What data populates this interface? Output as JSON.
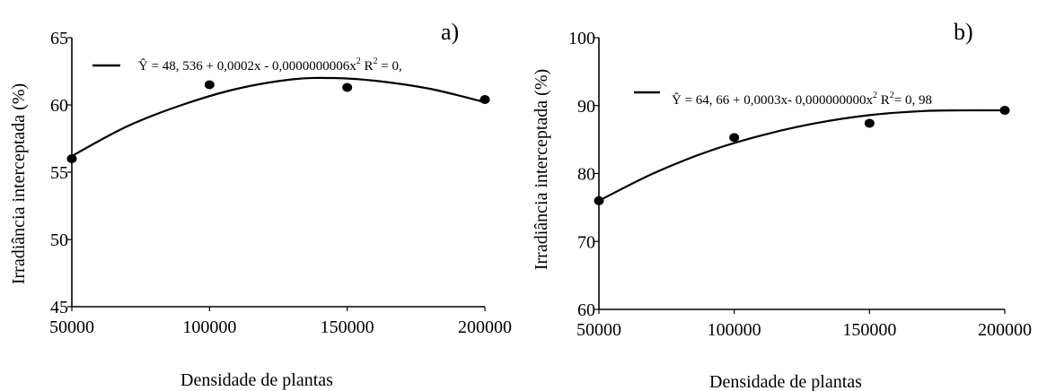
{
  "chart_data": [
    {
      "type": "scatter",
      "panel_label": "a)",
      "xlabel": "Densidade de plantas",
      "ylabel": "Irradiância interceptada (%)",
      "xlim": [
        50000,
        200000
      ],
      "ylim": [
        45,
        65
      ],
      "xticks": [
        50000,
        100000,
        150000,
        200000
      ],
      "xtick_labels": [
        "50000",
        "100000",
        "150000",
        "200000"
      ],
      "yticks": [
        45,
        50,
        55,
        60,
        65
      ],
      "ytick_labels": [
        "45",
        "50",
        "55",
        "60",
        "65"
      ],
      "equation": {
        "main": "Ŷ = 48, 536 + 0,0002x - 0,0000000006x",
        "sup": "2",
        "r2_prefix": " R",
        "r2_sup": "2",
        "r2_value": " = 0,"
      },
      "points": [
        {
          "x": 50000,
          "y": 56.0
        },
        {
          "x": 100000,
          "y": 61.5
        },
        {
          "x": 150000,
          "y": 61.3
        },
        {
          "x": 200000,
          "y": 60.4
        }
      ],
      "curve": [
        {
          "x": 50000,
          "y": 56.2
        },
        {
          "x": 70000,
          "y": 58.4
        },
        {
          "x": 90000,
          "y": 60.0
        },
        {
          "x": 110000,
          "y": 61.2
        },
        {
          "x": 130000,
          "y": 61.9
        },
        {
          "x": 145000,
          "y": 62.0
        },
        {
          "x": 160000,
          "y": 61.8
        },
        {
          "x": 180000,
          "y": 61.2
        },
        {
          "x": 200000,
          "y": 60.2
        }
      ]
    },
    {
      "type": "scatter",
      "panel_label": "b)",
      "xlabel": "Densidade de plantas",
      "ylabel": "Irradiância interceptada (%)",
      "xlim": [
        50000,
        200000
      ],
      "ylim": [
        60,
        100
      ],
      "xticks": [
        50000,
        100000,
        150000,
        200000
      ],
      "xtick_labels": [
        "50000",
        "100000",
        "150000",
        "200000"
      ],
      "yticks": [
        60,
        70,
        80,
        90,
        100
      ],
      "ytick_labels": [
        "60",
        "70",
        "80",
        "90",
        "100"
      ],
      "equation": {
        "main": "Ŷ = 64, 66 + 0,0003x- 0,000000000x",
        "sup": "2",
        "r2_prefix": " R",
        "r2_sup": "2",
        "r2_value": "= 0, 98"
      },
      "points": [
        {
          "x": 50000,
          "y": 76.0
        },
        {
          "x": 100000,
          "y": 85.3
        },
        {
          "x": 150000,
          "y": 87.4
        },
        {
          "x": 200000,
          "y": 89.3
        }
      ],
      "curve": [
        {
          "x": 50000,
          "y": 76.0
        },
        {
          "x": 70000,
          "y": 80.0
        },
        {
          "x": 90000,
          "y": 83.2
        },
        {
          "x": 110000,
          "y": 85.6
        },
        {
          "x": 130000,
          "y": 87.4
        },
        {
          "x": 150000,
          "y": 88.6
        },
        {
          "x": 170000,
          "y": 89.2
        },
        {
          "x": 185000,
          "y": 89.3
        },
        {
          "x": 200000,
          "y": 89.3
        }
      ]
    }
  ]
}
